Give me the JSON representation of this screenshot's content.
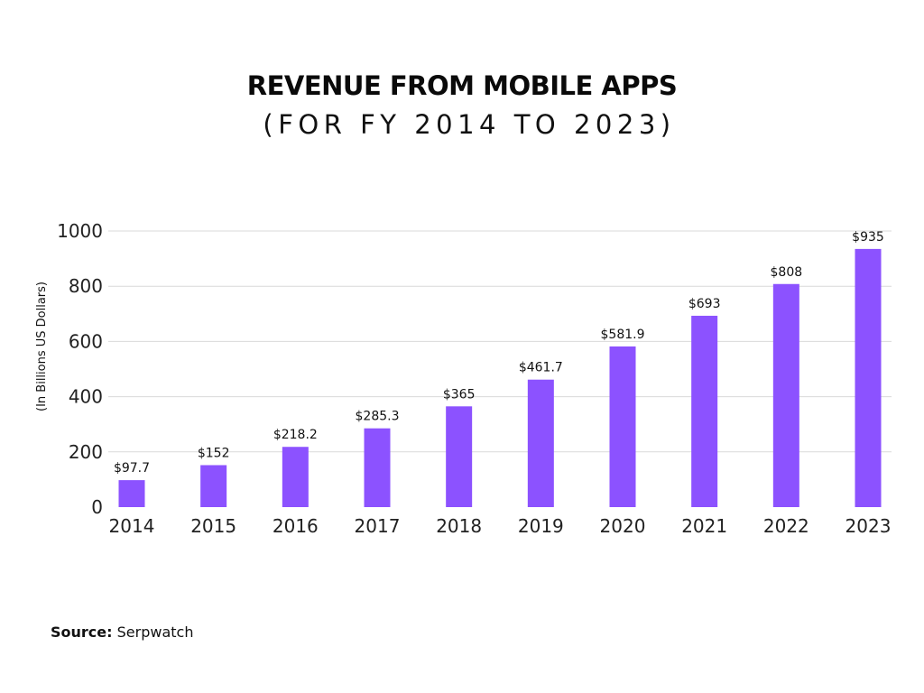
{
  "chart_data": {
    "type": "bar",
    "title": "REVENUE FROM MOBILE APPS",
    "subtitle": "(FOR FY 2014 TO 2023)",
    "xlabel": "",
    "ylabel": "(In Billions US Dollars)",
    "categories": [
      "2014",
      "2015",
      "2016",
      "2017",
      "2018",
      "2019",
      "2020",
      "2021",
      "2022",
      "2023"
    ],
    "values": [
      97.7,
      152,
      218.2,
      285.3,
      365,
      461.7,
      581.9,
      693,
      808,
      935
    ],
    "data_labels": [
      "$97.7",
      "$152",
      "$218.2",
      "$285.3",
      "$365",
      "$461.7",
      "$581.9",
      "$693",
      "$808",
      "$935"
    ],
    "ylim": [
      0,
      1000
    ],
    "yticks": [
      0,
      200,
      400,
      600,
      800,
      1000
    ],
    "grid": true,
    "bar_color": "#8c52ff",
    "grid_color": "#d9d9d9"
  },
  "source": {
    "label": "Source:",
    "text": "Serpwatch"
  }
}
